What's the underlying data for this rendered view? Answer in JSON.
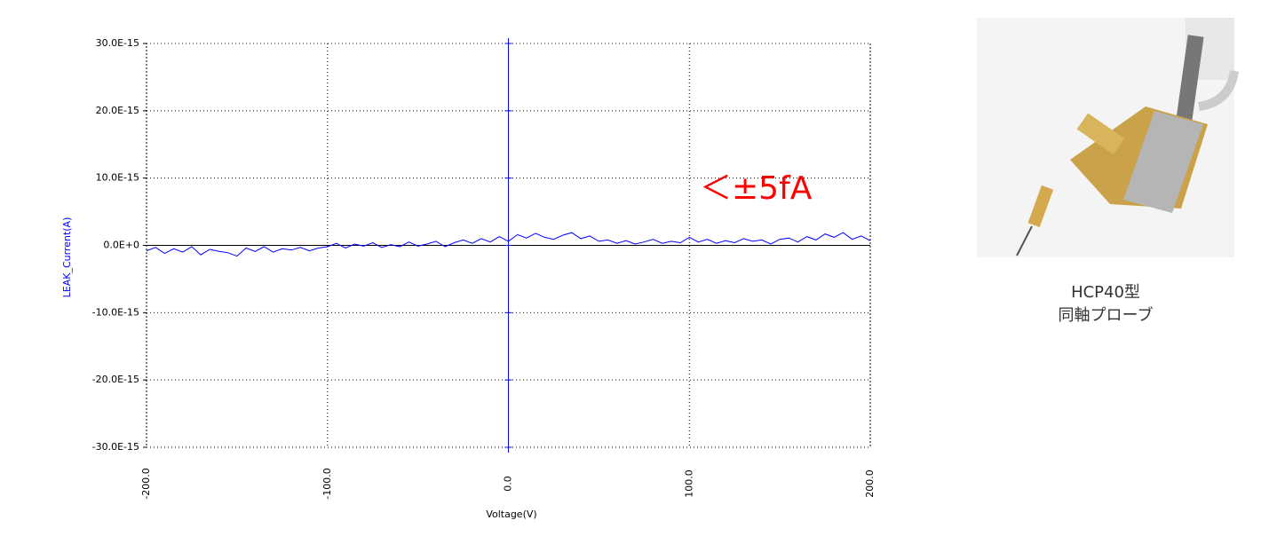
{
  "chart_data": {
    "type": "line",
    "x_label": "Voltage(V)",
    "y_label": "LEAK_Current(A)",
    "annotation": "＜±5fA",
    "color": "#0000ff",
    "grid": true,
    "xlim": [
      -200,
      200
    ],
    "xticks": [
      {
        "value": -200,
        "label": "-200.0"
      },
      {
        "value": -100,
        "label": "-100.0"
      },
      {
        "value": 0,
        "label": "0.0"
      },
      {
        "value": 100,
        "label": "100.0"
      },
      {
        "value": 200,
        "label": "200.0"
      }
    ],
    "ylim": [
      -3e-14,
      3e-14
    ],
    "yticks": [
      {
        "value": 3e-14,
        "label": "30.0E-15"
      },
      {
        "value": 2e-14,
        "label": "20.0E-15"
      },
      {
        "value": 1e-14,
        "label": "10.0E-15"
      },
      {
        "value": 0,
        "label": "0.0E+0"
      },
      {
        "value": -1e-14,
        "label": "-10.0E-15"
      },
      {
        "value": -2e-14,
        "label": "-20.0E-15"
      },
      {
        "value": -3e-14,
        "label": "-30.0E-15"
      }
    ],
    "x": [
      -200,
      -195,
      -190,
      -185,
      -180,
      -175,
      -170,
      -165,
      -160,
      -155,
      -150,
      -145,
      -140,
      -135,
      -130,
      -125,
      -120,
      -115,
      -110,
      -105,
      -100,
      -95,
      -90,
      -85,
      -80,
      -75,
      -70,
      -65,
      -60,
      -55,
      -50,
      -45,
      -40,
      -35,
      -30,
      -25,
      -20,
      -15,
      -10,
      -5,
      0,
      5,
      10,
      15,
      20,
      25,
      30,
      35,
      40,
      45,
      50,
      55,
      60,
      65,
      70,
      75,
      80,
      85,
      90,
      95,
      100,
      105,
      110,
      115,
      120,
      125,
      130,
      135,
      140,
      145,
      150,
      155,
      160,
      165,
      170,
      175,
      180,
      185,
      190,
      195,
      200
    ],
    "values": [
      -8e-16,
      -3e-16,
      -1.2e-15,
      -5e-16,
      -1e-15,
      -2e-16,
      -1.4e-15,
      -6e-16,
      -9e-16,
      -1.1e-15,
      -1.6e-15,
      -4e-16,
      -9e-16,
      -2e-16,
      -1e-15,
      -5e-16,
      -7e-16,
      -3e-16,
      -8e-16,
      -4e-16,
      -2e-16,
      3e-16,
      -4e-16,
      2e-16,
      -1e-16,
      4e-16,
      -3e-16,
      1e-16,
      -2e-16,
      5e-16,
      -1e-16,
      2e-16,
      6e-16,
      -2e-16,
      4e-16,
      8e-16,
      3e-16,
      1e-15,
      5e-16,
      1.3e-15,
      6e-16,
      1.6e-15,
      1.1e-15,
      1.8e-15,
      1.2e-15,
      9e-16,
      1.5e-15,
      1.9e-15,
      1e-15,
      1.4e-15,
      6e-16,
      8e-16,
      3e-16,
      7e-16,
      2e-16,
      5e-16,
      9e-16,
      3e-16,
      6e-16,
      4e-16,
      1.2e-15,
      5e-16,
      9e-16,
      3e-16,
      7e-16,
      4e-16,
      1e-15,
      6e-16,
      8e-16,
      2e-16,
      9e-16,
      1.1e-15,
      5e-16,
      1.3e-15,
      8e-16,
      1.7e-15,
      1.2e-15,
      1.9e-15,
      9e-16,
      1.4e-15,
      7e-16
    ]
  },
  "figure": {
    "caption_line1": "HCP40型",
    "caption_line2": "同軸プローブ"
  }
}
